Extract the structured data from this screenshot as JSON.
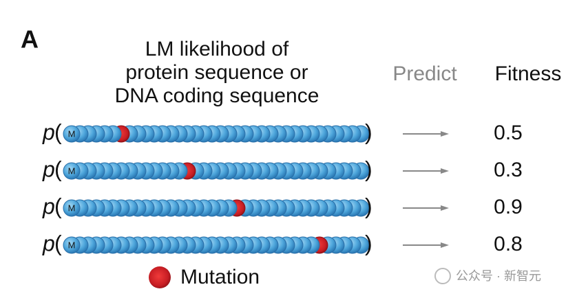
{
  "panel_label": "A",
  "header": {
    "lines": [
      "LM likelihood of",
      "protein sequence or",
      "DNA coding sequence"
    ],
    "predict": "Predict",
    "fitness": "Fitness"
  },
  "rows": [
    {
      "function": "p",
      "open": "(",
      "start": "M",
      "close": ")",
      "fitness": "0.5"
    },
    {
      "function": "p",
      "open": "(",
      "start": "M",
      "close": ")",
      "fitness": "0.3"
    },
    {
      "function": "p",
      "open": "(",
      "start": "M",
      "close": ")",
      "fitness": "0.9"
    },
    {
      "function": "p",
      "open": "(",
      "start": "M",
      "close": ")",
      "fitness": "0.8"
    }
  ],
  "legend": {
    "label": "Mutation"
  },
  "watermark": "公众号 · 新智元"
}
